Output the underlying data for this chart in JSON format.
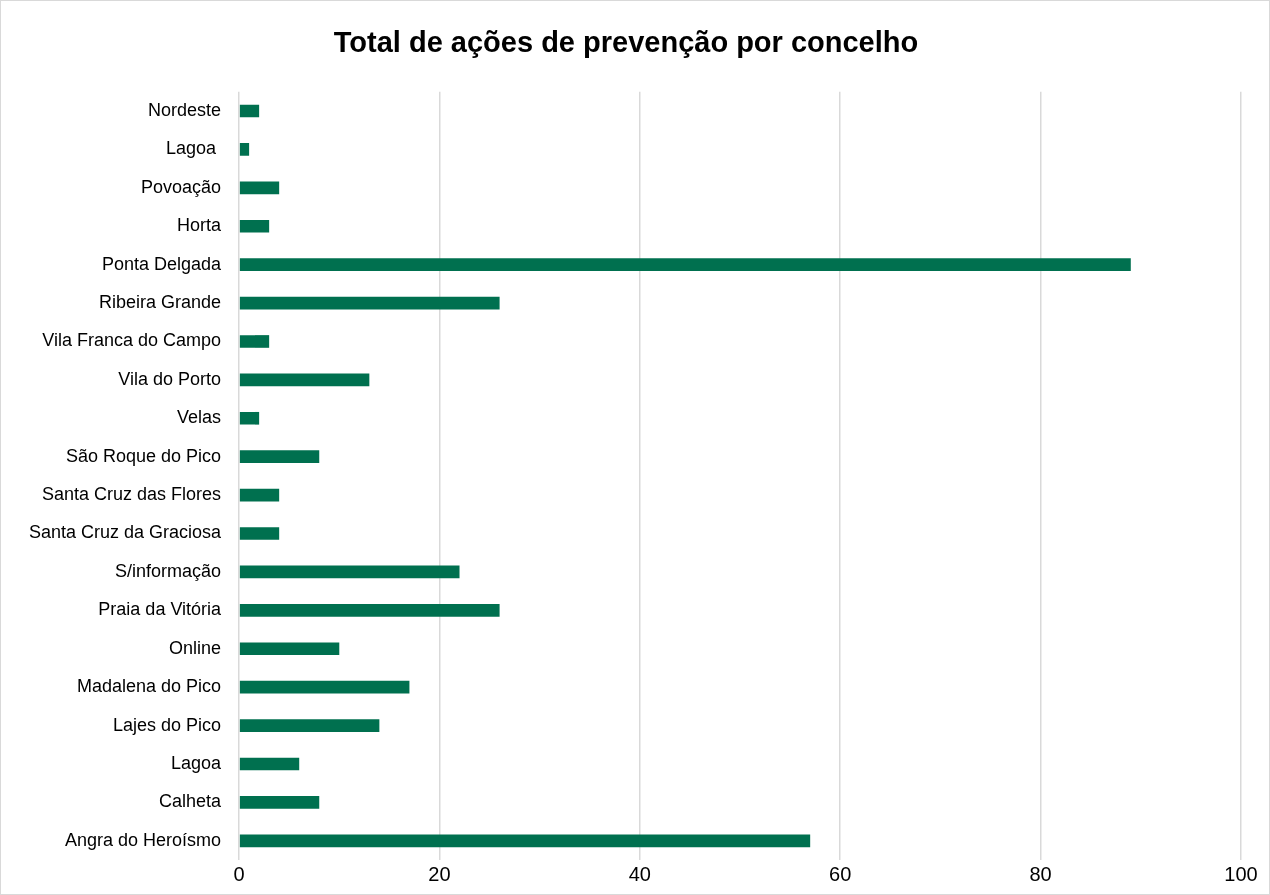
{
  "chart_data": {
    "type": "bar",
    "orientation": "horizontal",
    "title": "Total de ações de prevenção por concelho",
    "categories": [
      "Nordeste",
      "Lagoa ",
      "Povoação",
      "Horta",
      "Ponta Delgada",
      "Ribeira Grande",
      "Vila Franca do Campo",
      "Vila do Porto",
      "Velas",
      "São Roque do Pico",
      "Santa Cruz das Flores",
      "Santa Cruz da Graciosa",
      "S/informação",
      "Praia da Vitória",
      "Online",
      "Madalena do Pico",
      "Lajes do Pico",
      "Lagoa",
      "Calheta",
      "Angra do Heroísmo"
    ],
    "values": [
      2,
      1,
      4,
      3,
      89,
      26,
      3,
      13,
      2,
      8,
      4,
      4,
      22,
      26,
      10,
      17,
      14,
      6,
      8,
      57
    ],
    "color": "#00704f",
    "xlim": [
      0,
      100
    ],
    "xticks": [
      0,
      20,
      40,
      60,
      80,
      100
    ],
    "grid": "x",
    "legend": false
  }
}
